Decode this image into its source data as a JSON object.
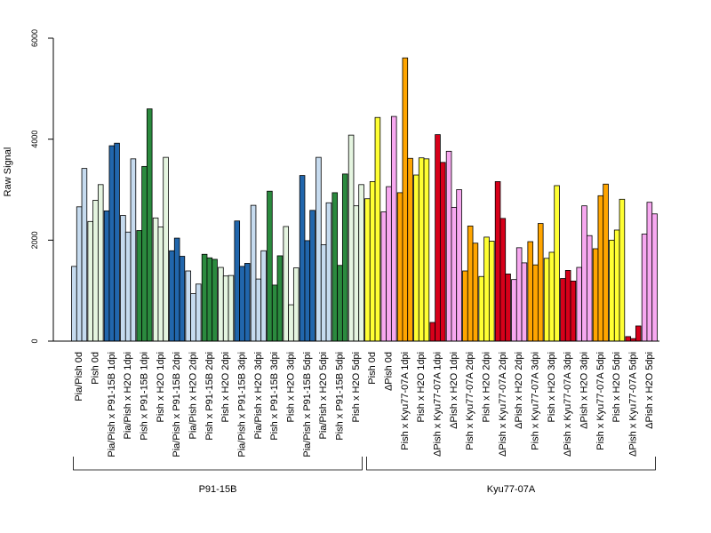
{
  "chart_data": {
    "type": "bar",
    "ylabel": "Raw Signal",
    "ylim": [
      0,
      6000
    ],
    "yticks": [
      0,
      2000,
      4000,
      6000
    ],
    "categories": [
      "Pia/Pish 0d",
      "Pish 0d",
      "Pia/Pish x P91-15B 1dpi",
      "Pia/Pish x H2O 1dpi",
      "Pish x P91-15B 1dpi",
      "Pish x H2O 1dpi",
      "Pia/Pish x P91-15B 2dpi",
      "Pia/Pish x H2O 2dpi",
      "Pish x P91-15B 2dpi",
      "Pish x H2O 2dpi",
      "Pia/Pish x P91-15B 3dpi",
      "Pia/Pish x H2O 3dpi",
      "Pish x P91-15B 3dpi",
      "Pish x H2O 3dpi",
      "Pia/Pish x P91-15B 5dpi",
      "Pia/Pish x H2O 5dpi",
      "Pish x P91-15B 5dpi",
      "Pish x H2O 5dpi",
      "Pish 0d",
      "ΔPish 0d",
      "Pish x Kyu77-07A 1dpi",
      "Pish x H2O 1dpi",
      "ΔPish x Kyu77-07A 1dpi",
      "ΔPish x H2O 1dpi",
      "Pish x Kyu77-07A 2dpi",
      "Pish x H2O 2dpi",
      "ΔPish x Kyu77-07A 2dpi",
      "ΔPish x H2O 2dpi",
      "Pish x Kyu77-07A 3dpi",
      "Pish x H2O 3dpi",
      "ΔPish x Kyu77-07A 3dpi",
      "ΔPish x H2O 3dpi",
      "Pish x Kyu77-07A 5dpi",
      "Pish x H2O 5dpi",
      "ΔPish x Kyu77-07A 5dpi",
      "ΔPish x H2O 5dpi"
    ],
    "colors": [
      "#c6dbef",
      "#e5f5e0",
      "#2166ac",
      "#c6dbef",
      "#2b8a3e",
      "#e5f5e0",
      "#2166ac",
      "#c6dbef",
      "#2b8a3e",
      "#e5f5e0",
      "#2166ac",
      "#c6dbef",
      "#2b8a3e",
      "#e5f5e0",
      "#2166ac",
      "#c6dbef",
      "#2b8a3e",
      "#e5f5e0",
      "#ffff33",
      "#f7a8f0",
      "#ffa500",
      "#ffff33",
      "#d7001a",
      "#f7a8f0",
      "#ffa500",
      "#ffff33",
      "#d7001a",
      "#f7a8f0",
      "#ffa500",
      "#ffff33",
      "#d7001a",
      "#f7a8f0",
      "#ffa500",
      "#ffff33",
      "#d7001a",
      "#f7a8f0"
    ],
    "values": [
      [
        1480,
        2660,
        3420
      ],
      [
        2370,
        2790,
        3100
      ],
      [
        2580,
        3870,
        3920
      ],
      [
        2490,
        2160,
        3610
      ],
      [
        2190,
        3460,
        4600
      ],
      [
        2440,
        2260,
        3640
      ],
      [
        1790,
        2040,
        1680
      ],
      [
        1390,
        940,
        1130
      ],
      [
        1720,
        1650,
        1620
      ],
      [
        1460,
        1290,
        1300
      ],
      [
        2380,
        1480,
        1540
      ],
      [
        2690,
        1230,
        1790
      ],
      [
        2970,
        1110,
        1690
      ],
      [
        2270,
        720,
        1450
      ],
      [
        3280,
        1990,
        2590
      ],
      [
        3640,
        1910,
        2740
      ],
      [
        2940,
        1500,
        3310
      ],
      [
        4080,
        2680,
        3100
      ],
      [
        2820,
        3160,
        4430
      ],
      [
        2560,
        3060,
        4450
      ],
      [
        2940,
        5610,
        3620
      ],
      [
        3290,
        3630,
        3610
      ],
      [
        370,
        4090,
        3540
      ],
      [
        3760,
        2650,
        3000
      ],
      [
        1390,
        2280,
        1940
      ],
      [
        1280,
        2060,
        1980
      ],
      [
        3160,
        2430,
        1330
      ],
      [
        1220,
        1850,
        1550
      ],
      [
        1970,
        1510,
        2330
      ],
      [
        1640,
        1760,
        3080
      ],
      [
        1240,
        1400,
        1190
      ],
      [
        1460,
        2680,
        2090
      ],
      [
        1830,
        2880,
        3110
      ],
      [
        2000,
        2200,
        2810
      ],
      [
        90,
        50,
        300
      ],
      [
        2120,
        2750,
        2520
      ]
    ],
    "groups": [
      {
        "label": "P91-15B",
        "start": 0,
        "end": 17
      },
      {
        "label": "Kyu77-07A",
        "start": 18,
        "end": 35
      }
    ]
  }
}
